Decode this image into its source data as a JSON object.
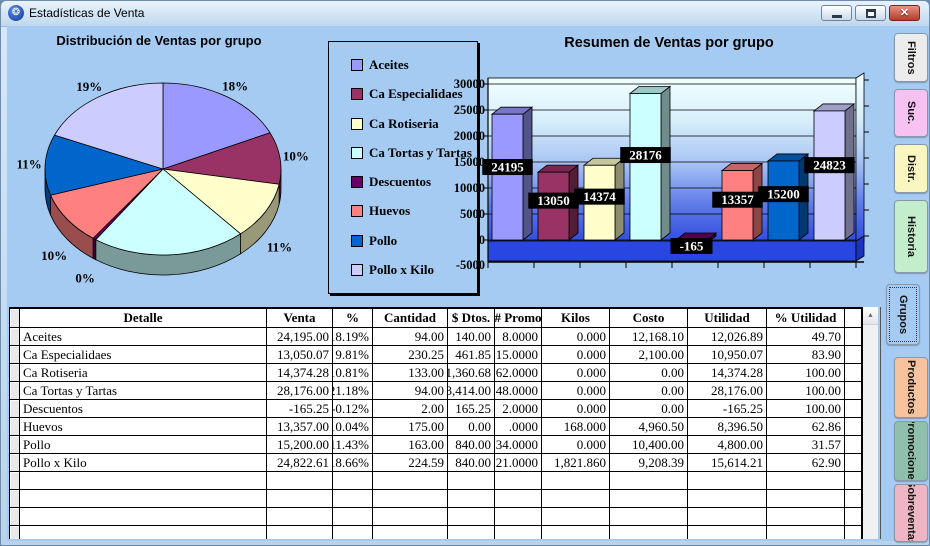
{
  "titlebar": {
    "title": "Estadísticas de Venta",
    "close_glyph": "✕"
  },
  "pie_chart": {
    "title": "Distribución de Ventas por grupo",
    "type": "pie"
  },
  "bar_chart": {
    "title": "Resumen de Ventas por grupo",
    "type": "bar",
    "y_min": -5000,
    "y_max": 30000,
    "y_step": 5000,
    "y_ticks": [
      "30000",
      "25000",
      "20000",
      "15000",
      "10000",
      "5000",
      "0",
      "-5000"
    ]
  },
  "categories": [
    {
      "name": "Aceites",
      "color": "#9999FF",
      "pie_label": "18%",
      "pie_pct": 18.19,
      "bar_value": 24195,
      "bar_label": "24195"
    },
    {
      "name": "Ca Especialidaes",
      "color": "#993366",
      "pie_label": "10%",
      "pie_pct": 9.81,
      "bar_value": 13050,
      "bar_label": "13050"
    },
    {
      "name": "Ca Rotiseria",
      "color": "#FFFFCC",
      "pie_label": "11%",
      "pie_pct": 10.81,
      "bar_value": 14374,
      "bar_label": "14374"
    },
    {
      "name": "Ca Tortas y Tartas",
      "color": "#CCFFFF",
      "pie_label": "",
      "pie_pct": 21.18,
      "bar_value": 28176,
      "bar_label": "28176"
    },
    {
      "name": "Descuentos",
      "color": "#660066",
      "pie_label": "0%",
      "pie_pct": -0.12,
      "bar_value": -165,
      "bar_label": "-165"
    },
    {
      "name": "Huevos",
      "color": "#FF8080",
      "pie_label": "10%",
      "pie_pct": 10.04,
      "bar_value": 13357,
      "bar_label": "13357"
    },
    {
      "name": "Pollo",
      "color": "#0066CC",
      "pie_label": "11%",
      "pie_pct": 11.43,
      "bar_value": 15200,
      "bar_label": "15200"
    },
    {
      "name": "Pollo x Kilo",
      "color": "#CCCCFF",
      "pie_label": "19%",
      "pie_pct": 18.66,
      "bar_value": 24823,
      "bar_label": "24823"
    }
  ],
  "table": {
    "columns": [
      "Detalle",
      "Venta",
      "%",
      "Cantidad",
      "$ Dtos.",
      "# Promo",
      "Kilos",
      "Costo",
      "Utilidad",
      "% Utilidad"
    ],
    "rows": [
      [
        "Aceites",
        "24,195.00",
        "18.19%",
        "94.00",
        "140.00",
        "8.0000",
        "0.000",
        "12,168.10",
        "12,026.89",
        "49.70"
      ],
      [
        "Ca Especialidaes",
        "13,050.07",
        "9.81%",
        "230.25",
        "461.85",
        "15.0000",
        "0.000",
        "2,100.00",
        "10,950.07",
        "83.90"
      ],
      [
        "Ca Rotiseria",
        "14,374.28",
        "10.81%",
        "133.00",
        "1,360.68",
        "62.0000",
        "0.000",
        "0.00",
        "14,374.28",
        "100.00"
      ],
      [
        "Ca Tortas y Tartas",
        "28,176.00",
        "21.18%",
        "94.00",
        "3,414.00",
        "48.0000",
        "0.000",
        "0.00",
        "28,176.00",
        "100.00"
      ],
      [
        "Descuentos",
        "-165.25",
        "-0.12%",
        "2.00",
        "165.25",
        "2.0000",
        "0.000",
        "0.00",
        "-165.25",
        "100.00"
      ],
      [
        "Huevos",
        "13,357.00",
        "10.04%",
        "175.00",
        "0.00",
        ".0000",
        "168.000",
        "4,960.50",
        "8,396.50",
        "62.86"
      ],
      [
        "Pollo",
        "15,200.00",
        "11.43%",
        "163.00",
        "840.00",
        "34.0000",
        "0.000",
        "10,400.00",
        "4,800.00",
        "31.57"
      ],
      [
        "Pollo x Kilo",
        "24,822.61",
        "18.66%",
        "224.59",
        "840.00",
        "21.0000",
        "1,821.860",
        "9,208.39",
        "15,614.21",
        "62.90"
      ]
    ],
    "empty_rows": 5
  },
  "tabs": {
    "items": [
      {
        "label": "Filtros",
        "color": "#ECECEC",
        "selected": false
      },
      {
        "label": "Suc.",
        "color": "#F6C2F2",
        "selected": false
      },
      {
        "label": "Distr.",
        "color": "#F9F6C0",
        "selected": false
      },
      {
        "label": "Historia",
        "color": "#C4EECB",
        "selected": false
      },
      {
        "label": "Grupos",
        "color": "#A6CBF2",
        "selected": true
      },
      {
        "label": "Productos",
        "color": "#F8C29C",
        "selected": false
      },
      {
        "label": "Promociones",
        "color": "#8FC0AE",
        "selected": false
      },
      {
        "label": "Sobreventas",
        "color": "#EDB6C2",
        "selected": false
      }
    ]
  },
  "colors": {
    "content_background": "#A6CBF2",
    "bar_floor": "#2946E0",
    "value_label_bg": "#000000",
    "value_label_text": "#FFFFFF"
  }
}
